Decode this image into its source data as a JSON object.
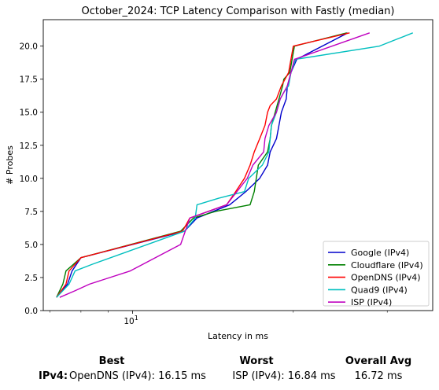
{
  "chart_data": {
    "type": "line",
    "title": "October_2024: TCP Latency Comparison with Fastly (median)",
    "xlabel": "Latency in ms",
    "ylabel": "# Probes",
    "xscale": "log",
    "xlim": [
      6.8,
      36.5
    ],
    "ylim": [
      0,
      22
    ],
    "yticks": [
      0.0,
      2.5,
      5.0,
      7.5,
      10.0,
      12.5,
      15.0,
      17.5,
      20.0
    ],
    "ytick_labels": [
      "0.0",
      "2.5",
      "5.0",
      "7.5",
      "10.0",
      "12.5",
      "15.0",
      "17.5",
      "20.0"
    ],
    "xticks": [
      10
    ],
    "xtick_labels": [
      "10"
    ],
    "legend_position": "lower right",
    "grid": false,
    "series": [
      {
        "name": "Google (IPv4)",
        "color": "#0000cc",
        "x": [
          7.2,
          7.55,
          7.7,
          8.0,
          12.5,
          13.2,
          15.2,
          16.3,
          17.3,
          17.9,
          18.1,
          18.6,
          18.8,
          19.0,
          19.4,
          19.5,
          19.8,
          20.3,
          25.3
        ],
        "y": [
          1,
          2,
          3,
          4,
          6,
          7,
          8,
          9,
          10,
          11,
          12,
          13,
          14,
          15,
          16,
          17,
          18,
          19,
          21
        ]
      },
      {
        "name": "Cloudflare (IPv4)",
        "color": "#008000",
        "x": [
          7.2,
          7.4,
          7.5,
          8.0,
          12.3,
          13.0,
          14.3,
          16.6,
          16.9,
          17.2,
          17.9,
          18.1,
          18.2,
          18.5,
          18.8,
          19.1,
          19.2,
          19.7,
          20.1,
          25.2
        ],
        "y": [
          1,
          2,
          3,
          4,
          6,
          7,
          7.5,
          8,
          9,
          11,
          12,
          13,
          14,
          15,
          16,
          17,
          17.5,
          18,
          20,
          21
        ]
      },
      {
        "name": "OpenDNS (IPv4)",
        "color": "#ff0000",
        "x": [
          7.2,
          7.5,
          7.6,
          8.0,
          12.4,
          12.8,
          15.0,
          15.6,
          16.2,
          16.6,
          16.9,
          17.3,
          17.7,
          17.9,
          18.1,
          18.6,
          19.0,
          19.3,
          19.6,
          20.0,
          25.5
        ],
        "y": [
          1,
          2,
          3,
          4,
          6,
          7,
          8,
          9,
          10,
          11,
          12,
          13,
          14,
          15,
          15.5,
          16,
          17,
          17.5,
          18,
          20,
          21
        ]
      },
      {
        "name": "Quad9 (IPv4)",
        "color": "#00bfbf",
        "x": [
          7.2,
          7.6,
          7.8,
          8.4,
          12.5,
          13.1,
          13.2,
          14.5,
          16.2,
          16.5,
          17.5,
          18.0,
          18.2,
          18.6,
          18.9,
          19.2,
          19.6,
          19.8,
          20.2,
          29.0,
          33.5
        ],
        "y": [
          1,
          2,
          3,
          3.5,
          6,
          7,
          8,
          8.5,
          9,
          10,
          11,
          12,
          14,
          15,
          16,
          16.5,
          17,
          18,
          19,
          20,
          21
        ]
      },
      {
        "name": "ISP (IPv4)",
        "color": "#bf00bf",
        "x": [
          7.3,
          7.8,
          8.3,
          9.9,
          12.3,
          12.8,
          15.0,
          16.4,
          16.8,
          17.6,
          17.7,
          18.0,
          18.6,
          18.9,
          19.5,
          20.1,
          27.8
        ],
        "y": [
          1,
          1.5,
          2,
          3,
          5,
          7,
          8,
          10,
          11,
          12,
          13,
          14,
          15,
          16,
          17,
          19,
          21
        ]
      }
    ]
  },
  "summary": {
    "best_header": "Best",
    "worst_header": "Worst",
    "avg_header": "Overall Avg",
    "row_label": "IPv4",
    "row_colon": ":",
    "best_value": "OpenDNS (IPv4): 16.15 ms",
    "worst_value": "ISP (IPv4): 16.84 ms",
    "avg_value": "16.72 ms"
  }
}
